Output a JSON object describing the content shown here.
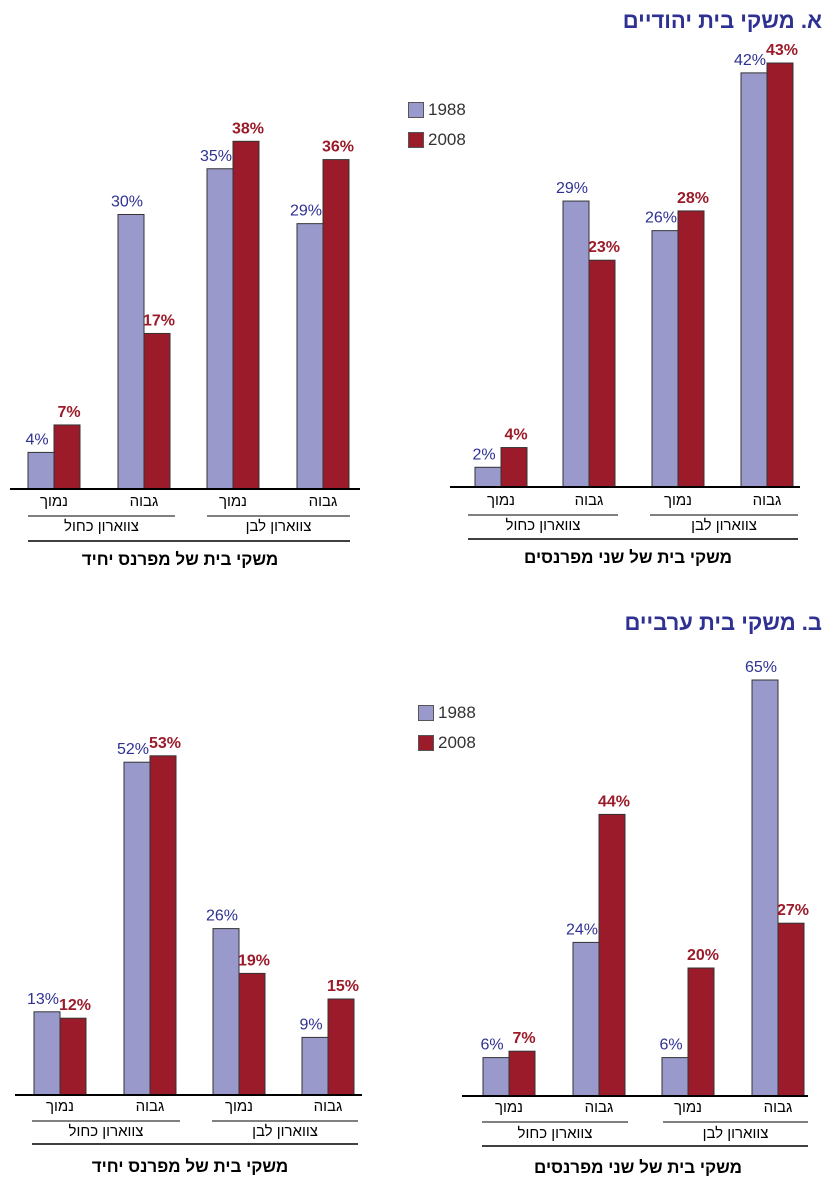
{
  "colors": {
    "series1988": "#9999cc",
    "series2008": "#9b1b2a",
    "label1988": "#2e3192",
    "label2008": "#9b1b2a"
  },
  "sections": [
    {
      "title": "א. משקי בית יהודיים"
    },
    {
      "title": "ב. משקי בית ערביים"
    }
  ],
  "legends": [
    {
      "items": [
        {
          "label": "1988",
          "series": "1988"
        },
        {
          "label": "2008",
          "series": "2008"
        }
      ]
    },
    {
      "items": [
        {
          "label": "1988",
          "series": "1988"
        },
        {
          "label": "2008",
          "series": "2008"
        }
      ]
    }
  ],
  "chart_data": [
    {
      "type": "bar",
      "title": "משקי בית של מפרנס יחיד",
      "categories": [
        "נמוך",
        "גבוה",
        "נמוך",
        "גבוה"
      ],
      "groups": [
        "צווארון כחול",
        "צווארון לבן"
      ],
      "series": [
        {
          "name": "1988",
          "values": [
            4,
            30,
            35,
            29
          ],
          "labels": [
            "4%",
            "30%",
            "35%",
            "29%"
          ]
        },
        {
          "name": "2008",
          "values": [
            7,
            17,
            38,
            36
          ],
          "labels": [
            "7%",
            "17%",
            "38%",
            "36%"
          ]
        }
      ],
      "ylim": [
        0,
        45
      ],
      "legend": "none"
    },
    {
      "type": "bar",
      "title": "משקי בית של שני מפרנסים",
      "categories": [
        "נמוך",
        "גבוה",
        "נמוך",
        "גבוה"
      ],
      "groups": [
        "צווארון כחול",
        "צווארון לבן"
      ],
      "series": [
        {
          "name": "1988",
          "values": [
            2,
            29,
            26,
            42
          ],
          "labels": [
            "2%",
            "29%",
            "26%",
            "42%"
          ]
        },
        {
          "name": "2008",
          "values": [
            4,
            23,
            28,
            43
          ],
          "labels": [
            "4%",
            "23%",
            "28%",
            "43%"
          ]
        }
      ],
      "ylim": [
        0,
        45
      ],
      "legend": "top-left"
    },
    {
      "type": "bar",
      "title": "משקי בית של מפרנס יחיד",
      "categories": [
        "נמוך",
        "גבוה",
        "נמוך",
        "גבוה"
      ],
      "groups": [
        "צווארון כחול",
        "צווארון לבן"
      ],
      "series": [
        {
          "name": "1988",
          "values": [
            13,
            52,
            26,
            9
          ],
          "labels": [
            "13%",
            "52%",
            "26%",
            "9%"
          ]
        },
        {
          "name": "2008",
          "values": [
            12,
            53,
            19,
            15
          ],
          "labels": [
            "12%",
            "53%",
            "19%",
            "15%"
          ]
        }
      ],
      "ylim": [
        0,
        68
      ],
      "legend": "none"
    },
    {
      "type": "bar",
      "title": "משקי בית של שני מפרנסים",
      "categories": [
        "נמוך",
        "גבוה",
        "נמוך",
        "גבוה"
      ],
      "groups": [
        "צווארון כחול",
        "צווארון לבן"
      ],
      "series": [
        {
          "name": "1988",
          "values": [
            6,
            24,
            6,
            65
          ],
          "labels": [
            "6%",
            "24%",
            "6%",
            "65%"
          ]
        },
        {
          "name": "2008",
          "values": [
            7,
            44,
            20,
            27
          ],
          "labels": [
            "7%",
            "44%",
            "20%",
            "27%"
          ]
        }
      ],
      "ylim": [
        0,
        68
      ],
      "legend": "top-left"
    }
  ]
}
